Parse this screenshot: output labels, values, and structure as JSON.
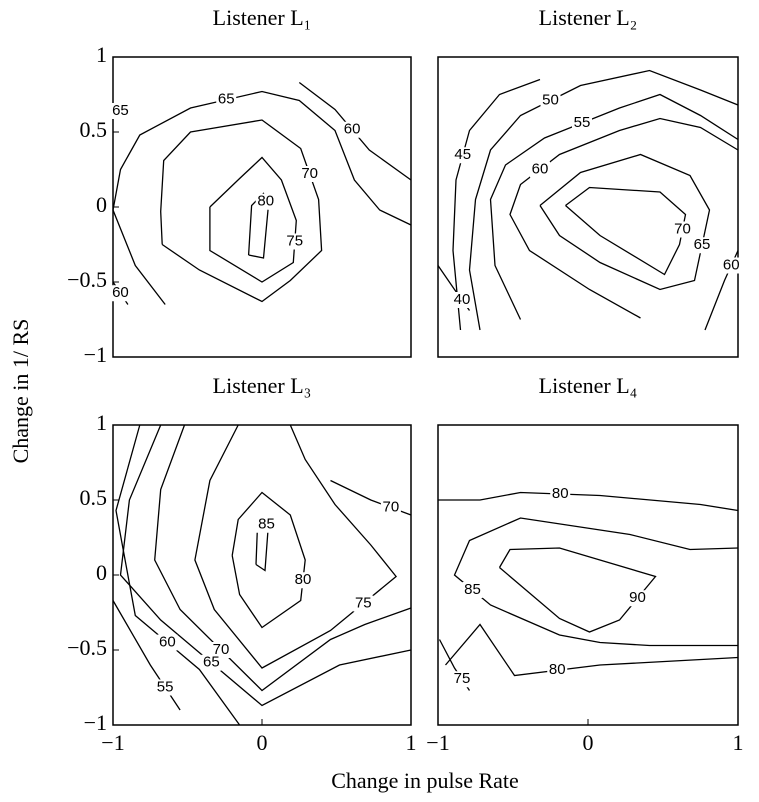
{
  "figure": {
    "xlabel": "Change in pulse Rate",
    "ylabel": "Change in 1/ RS"
  },
  "chart_data": [
    {
      "type": "contour",
      "title": "Listener L₁",
      "xlim": [
        -1,
        1
      ],
      "ylim": [
        -1,
        1
      ],
      "yticks": [
        {
          "value": -1,
          "label": "−1"
        },
        {
          "value": -0.5,
          "label": "−0.5"
        },
        0,
        0.5,
        1
      ],
      "contours": [
        {
          "level": 80,
          "x": [
            -0.09,
            -0.07,
            0.01,
            0.04,
            0.01,
            -0.09
          ],
          "y": [
            -0.32,
            0.01,
            0.09,
            -0.02,
            -0.34,
            -0.32
          ]
        },
        {
          "level": 75,
          "x": [
            -0.35,
            -0.15,
            0,
            0.13,
            0.23,
            0.21,
            0,
            -0.35,
            -0.35
          ],
          "y": [
            0,
            0.19,
            0.33,
            0.18,
            -0.09,
            -0.37,
            -0.5,
            -0.29,
            0
          ]
        },
        {
          "level": 70,
          "x": [
            -0.67,
            -0.68,
            -0.66,
            -0.48,
            0,
            0.26,
            0.38,
            0.4,
            0.19,
            0,
            -0.42,
            -0.67
          ],
          "y": [
            -0.25,
            -0.03,
            0.31,
            0.5,
            0.58,
            0.39,
            0.05,
            -0.29,
            -0.49,
            -0.63,
            -0.42,
            -0.25
          ]
        },
        {
          "level": 65,
          "x": [
            -0.65,
            -0.85,
            -1,
            -0.95,
            -0.82,
            -0.48,
            0,
            0.25,
            0.49,
            0.62,
            0.79,
            1
          ],
          "y": [
            -0.65,
            -0.39,
            -0.02,
            0.25,
            0.48,
            0.66,
            0.77,
            0.71,
            0.51,
            0.18,
            -0.02,
            -0.12
          ]
        },
        {
          "level": 60,
          "x": [
            0.25,
            0.49,
            0.72,
            1
          ],
          "y": [
            0.83,
            0.65,
            0.38,
            0.18
          ]
        },
        {
          "level": 65,
          "x": [
            -1,
            -0.9
          ],
          "y": [
            0.68,
            0.6
          ]
        },
        {
          "level": 60,
          "x": [
            -1,
            -0.9
          ],
          "y": [
            -0.5,
            -0.65
          ]
        }
      ]
    },
    {
      "type": "contour",
      "title": "Listener L₂",
      "xlim": [
        -1,
        1
      ],
      "ylim": [
        -1,
        1
      ],
      "contours": [
        {
          "level": 70,
          "x": [
            -0.15,
            0.01,
            0.48,
            0.65,
            0.61,
            0.51,
            0.08,
            -0.15
          ],
          "y": [
            0.01,
            0.13,
            0.1,
            -0.05,
            -0.25,
            -0.45,
            -0.19,
            0.01
          ]
        },
        {
          "level": 65,
          "x": [
            -0.32,
            -0.05,
            0.35,
            0.68,
            0.81,
            0.71,
            0.48,
            0.08,
            -0.19,
            -0.32
          ],
          "y": [
            0.01,
            0.23,
            0.35,
            0.21,
            -0.02,
            -0.49,
            -0.55,
            -0.37,
            -0.19,
            0.01
          ]
        },
        {
          "level": 60,
          "x": [
            0.35,
            0.01,
            -0.39,
            -0.52,
            -0.45,
            -0.19,
            0.21,
            0.48,
            0.75,
            1
          ],
          "y": [
            -0.74,
            -0.55,
            -0.29,
            -0.05,
            0.15,
            0.35,
            0.51,
            0.59,
            0.53,
            0.38
          ]
        },
        {
          "level": 60,
          "x": [
            0.78,
            0.91,
            1
          ],
          "y": [
            -0.82,
            -0.49,
            -0.29
          ]
        },
        {
          "level": 55,
          "x": [
            -0.45,
            -0.62,
            -0.65,
            -0.55,
            -0.29,
            0.21,
            0.48,
            0.75,
            1
          ],
          "y": [
            -0.75,
            -0.39,
            0.05,
            0.28,
            0.46,
            0.66,
            0.75,
            0.61,
            0.45
          ]
        },
        {
          "level": 50,
          "x": [
            -0.72,
            -0.79,
            -0.75,
            -0.65,
            -0.45,
            -0.05,
            0.41,
            0.75,
            1
          ],
          "y": [
            -0.82,
            -0.42,
            0.05,
            0.38,
            0.61,
            0.81,
            0.91,
            0.78,
            0.68
          ]
        },
        {
          "level": 45,
          "x": [
            -0.85,
            -0.9,
            -0.88,
            -0.79,
            -0.59,
            -0.32
          ],
          "y": [
            -0.82,
            -0.29,
            0.18,
            0.51,
            0.75,
            0.85
          ]
        },
        {
          "level": 40,
          "x": [
            -1,
            -0.89,
            -0.79
          ],
          "y": [
            -0.39,
            -0.55,
            -0.69
          ]
        }
      ]
    },
    {
      "type": "contour",
      "title": "Listener L₃",
      "xlim": [
        -1,
        1
      ],
      "ylim": [
        -1,
        1
      ],
      "xticks": [
        {
          "value": -1,
          "label": "−1"
        },
        0,
        1
      ],
      "yticks": [
        {
          "value": -1,
          "label": "−1"
        },
        {
          "value": -0.5,
          "label": "−0.5"
        },
        0,
        0.5,
        1
      ],
      "contours": [
        {
          "level": 85,
          "x": [
            -0.04,
            -0.03,
            0.02,
            0.04,
            0.02,
            -0.04
          ],
          "y": [
            0.07,
            0.33,
            0.37,
            0.3,
            0.03,
            0.07
          ]
        },
        {
          "level": 80,
          "x": [
            -0.2,
            -0.16,
            0,
            0.19,
            0.29,
            0.26,
            0,
            -0.15,
            -0.2
          ],
          "y": [
            0.13,
            0.37,
            0.55,
            0.4,
            0.1,
            -0.17,
            -0.35,
            -0.13,
            0.13
          ]
        },
        {
          "level": 75,
          "x": [
            -0.16,
            -0.35,
            -0.45,
            -0.32,
            0,
            0.46,
            0.9,
            0.73,
            0.49,
            0.29,
            0.19
          ],
          "y": [
            1,
            0.63,
            0.1,
            -0.23,
            -0.62,
            -0.37,
            -0.01,
            0.2,
            0.47,
            0.77,
            1
          ]
        },
        {
          "level": 70,
          "x": [
            -0.52,
            -0.68,
            -0.72,
            -0.55,
            0,
            0.46,
            0.69,
            1
          ],
          "y": [
            1,
            0.57,
            0.1,
            -0.23,
            -0.77,
            -0.43,
            -0.33,
            -0.22
          ]
        },
        {
          "level": 70,
          "x": [
            0.46,
            0.73,
            1
          ],
          "y": [
            0.63,
            0.5,
            0.4
          ]
        },
        {
          "level": 65,
          "x": [
            -0.68,
            -0.89,
            -0.95,
            -0.68,
            0,
            0.52,
            1
          ],
          "y": [
            1,
            0.5,
            0,
            -0.3,
            -0.87,
            -0.6,
            -0.5
          ]
        },
        {
          "level": 60,
          "x": [
            -0.82,
            -0.98,
            -0.85,
            -0.42,
            -0.15
          ],
          "y": [
            1,
            0.43,
            -0.27,
            -0.63,
            -1
          ]
        },
        {
          "level": 55,
          "x": [
            -1,
            -0.75,
            -0.55
          ],
          "y": [
            -0.17,
            -0.6,
            -0.9
          ]
        }
      ]
    },
    {
      "type": "contour",
      "title": "Listener L₄",
      "xlim": [
        -1,
        1
      ],
      "ylim": [
        -1,
        1
      ],
      "xticks": [
        {
          "value": -1,
          "label": "−1"
        },
        0,
        1
      ],
      "contours": [
        {
          "level": 90,
          "x": [
            -0.59,
            -0.52,
            -0.19,
            0.45,
            0.21,
            0.01,
            -0.19,
            -0.59
          ],
          "y": [
            0.05,
            0.17,
            0.18,
            -0.01,
            -0.3,
            -0.38,
            -0.29,
            0.05
          ]
        },
        {
          "level": 85,
          "x": [
            1,
            0.68,
            0.28,
            -0.45,
            -0.79,
            -0.89,
            -0.65,
            -0.19,
            0.08,
            0.41,
            1
          ],
          "y": [
            0.18,
            0.17,
            0.27,
            0.38,
            0.23,
            0,
            -0.2,
            -0.4,
            -0.45,
            -0.47,
            -0.47
          ]
        },
        {
          "level": 80,
          "x": [
            -1,
            -0.72,
            -0.45,
            0.08,
            0.75,
            1
          ],
          "y": [
            0.5,
            0.5,
            0.55,
            0.53,
            0.47,
            0.43
          ]
        },
        {
          "level": 80,
          "x": [
            -0.95,
            -0.72,
            -0.49,
            0.08,
            1
          ],
          "y": [
            -0.6,
            -0.33,
            -0.67,
            -0.6,
            -0.55
          ]
        },
        {
          "level": 75,
          "x": [
            -0.99,
            -0.89,
            -0.79
          ],
          "y": [
            -0.43,
            -0.62,
            -0.77
          ]
        }
      ]
    }
  ]
}
